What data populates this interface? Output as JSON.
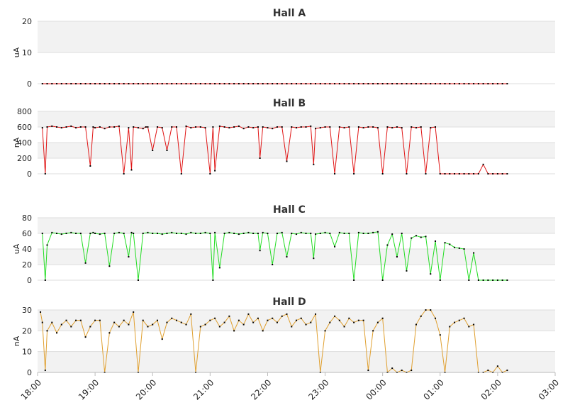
{
  "chart_data": [
    {
      "type": "line",
      "title": "Hall A",
      "ylabel": "uA",
      "ylim": [
        0,
        20
      ],
      "yticks": [
        0,
        10,
        20
      ],
      "color": "#e01515",
      "series": [
        {
          "x": [
            "18:05",
            "18:10",
            "18:15",
            "18:20",
            "18:25",
            "18:30",
            "18:35",
            "18:40",
            "18:45",
            "18:50",
            "18:55",
            "19:00",
            "19:05",
            "19:10",
            "19:15",
            "19:20",
            "19:25",
            "19:30",
            "19:35",
            "19:40",
            "19:45",
            "19:50",
            "19:55",
            "20:00",
            "20:05",
            "20:10",
            "20:15",
            "20:20",
            "20:25",
            "20:30",
            "20:35",
            "20:40",
            "20:45",
            "20:50",
            "20:55",
            "21:00",
            "21:05",
            "21:10",
            "21:15",
            "21:20",
            "21:25",
            "21:30",
            "21:35",
            "21:40",
            "21:45",
            "21:50",
            "21:55",
            "22:00",
            "22:05",
            "22:10",
            "22:15",
            "22:20",
            "22:25",
            "22:30",
            "22:35",
            "22:40",
            "22:45",
            "22:50",
            "22:55",
            "23:00",
            "23:05",
            "23:10",
            "23:15",
            "23:20",
            "23:25",
            "23:30",
            "23:35",
            "23:40",
            "23:45",
            "23:50",
            "23:55",
            "00:00",
            "00:05",
            "00:10",
            "00:15",
            "00:20",
            "00:25",
            "00:30",
            "00:35",
            "00:40",
            "00:45",
            "00:50",
            "00:55",
            "01:00",
            "01:05",
            "01:10",
            "01:15",
            "01:20",
            "01:25",
            "01:30",
            "01:35",
            "01:40",
            "01:45",
            "01:50",
            "01:55",
            "02:00",
            "02:05",
            "02:10"
          ],
          "values": [
            0,
            0,
            0,
            0,
            0,
            0,
            0,
            0,
            0,
            0,
            0,
            0,
            0,
            0,
            0,
            0,
            0,
            0,
            0,
            0,
            0,
            0,
            0,
            0,
            0,
            0,
            0,
            0,
            0,
            0,
            0,
            0,
            0,
            0,
            0,
            0,
            0,
            0,
            0,
            0,
            0,
            0,
            0,
            0,
            0,
            0,
            0,
            0,
            0,
            0,
            0,
            0,
            0,
            0,
            0,
            0,
            0,
            0,
            0,
            0,
            0,
            0,
            0,
            0,
            0,
            0,
            0,
            0,
            0,
            0,
            0,
            0,
            0,
            0,
            0,
            0,
            0,
            0,
            0,
            0,
            0,
            0,
            0,
            0,
            0,
            0,
            0,
            0,
            0,
            0,
            0,
            0,
            0,
            0,
            0,
            0,
            0,
            0
          ]
        }
      ]
    },
    {
      "type": "line",
      "title": "Hall B",
      "ylabel": "nA",
      "ylim": [
        0,
        800
      ],
      "yticks": [
        0,
        200,
        400,
        600,
        800
      ],
      "color": "#e01515",
      "series": [
        {
          "x": [
            "18:05",
            "18:08",
            "18:10",
            "18:15",
            "18:20",
            "18:25",
            "18:30",
            "18:35",
            "18:40",
            "18:45",
            "18:50",
            "18:55",
            "18:58",
            "19:00",
            "19:05",
            "19:10",
            "19:15",
            "19:20",
            "19:25",
            "19:30",
            "19:35",
            "19:38",
            "19:40",
            "19:45",
            "19:50",
            "19:53",
            "19:55",
            "20:00",
            "20:05",
            "20:10",
            "20:15",
            "20:20",
            "20:25",
            "20:30",
            "20:35",
            "20:40",
            "20:45",
            "20:50",
            "20:55",
            "21:00",
            "21:03",
            "21:05",
            "21:10",
            "21:15",
            "21:20",
            "21:25",
            "21:30",
            "21:35",
            "21:40",
            "21:45",
            "21:50",
            "21:52",
            "21:55",
            "22:00",
            "22:05",
            "22:10",
            "22:15",
            "22:20",
            "22:25",
            "22:30",
            "22:35",
            "22:40",
            "22:45",
            "22:48",
            "22:50",
            "22:55",
            "23:00",
            "23:05",
            "23:10",
            "23:15",
            "23:20",
            "23:25",
            "23:30",
            "23:35",
            "23:40",
            "23:45",
            "23:50",
            "23:55",
            "00:00",
            "00:05",
            "00:10",
            "00:15",
            "00:20",
            "00:25",
            "00:30",
            "00:35",
            "00:40",
            "00:45",
            "00:50",
            "00:55",
            "01:00",
            "01:05",
            "01:10",
            "01:15",
            "01:20",
            "01:25",
            "01:30",
            "01:35",
            "01:40",
            "01:45",
            "01:50",
            "01:55",
            "02:00",
            "02:05",
            "02:10"
          ],
          "values": [
            590,
            0,
            600,
            610,
            600,
            590,
            600,
            610,
            590,
            600,
            600,
            100,
            600,
            590,
            600,
            580,
            600,
            600,
            610,
            0,
            590,
            50,
            600,
            590,
            580,
            600,
            600,
            300,
            600,
            590,
            300,
            600,
            600,
            0,
            610,
            590,
            600,
            600,
            590,
            0,
            600,
            40,
            610,
            600,
            590,
            600,
            610,
            580,
            600,
            590,
            600,
            200,
            600,
            590,
            580,
            600,
            600,
            160,
            600,
            590,
            600,
            600,
            610,
            120,
            580,
            590,
            600,
            600,
            0,
            600,
            590,
            600,
            0,
            600,
            590,
            600,
            600,
            590,
            0,
            600,
            590,
            600,
            590,
            0,
            600,
            590,
            600,
            0,
            590,
            600,
            0,
            0,
            0,
            0,
            0,
            0,
            0,
            0,
            0,
            120,
            0,
            0,
            0,
            0,
            0
          ]
        }
      ]
    },
    {
      "type": "line",
      "title": "Hall C",
      "ylabel": "uA",
      "ylim": [
        0,
        80
      ],
      "yticks": [
        0,
        20,
        40,
        60,
        80
      ],
      "color": "#22dd22",
      "series": [
        {
          "x": [
            "18:05",
            "18:08",
            "18:10",
            "18:15",
            "18:20",
            "18:25",
            "18:30",
            "18:35",
            "18:40",
            "18:45",
            "18:50",
            "18:55",
            "18:58",
            "19:00",
            "19:05",
            "19:10",
            "19:15",
            "19:20",
            "19:25",
            "19:30",
            "19:35",
            "19:38",
            "19:40",
            "19:45",
            "19:50",
            "19:55",
            "20:00",
            "20:05",
            "20:10",
            "20:15",
            "20:20",
            "20:25",
            "20:30",
            "20:35",
            "20:40",
            "20:45",
            "20:50",
            "20:55",
            "21:00",
            "21:03",
            "21:05",
            "21:10",
            "21:15",
            "21:20",
            "21:25",
            "21:30",
            "21:35",
            "21:40",
            "21:45",
            "21:50",
            "21:52",
            "21:55",
            "22:00",
            "22:05",
            "22:10",
            "22:15",
            "22:20",
            "22:25",
            "22:30",
            "22:35",
            "22:40",
            "22:45",
            "22:48",
            "22:50",
            "22:55",
            "23:00",
            "23:05",
            "23:10",
            "23:15",
            "23:20",
            "23:25",
            "23:30",
            "23:35",
            "23:40",
            "23:45",
            "23:50",
            "23:55",
            "00:00",
            "00:05",
            "00:10",
            "00:15",
            "00:20",
            "00:25",
            "00:30",
            "00:35",
            "00:40",
            "00:45",
            "00:50",
            "00:55",
            "01:00",
            "01:05",
            "01:10",
            "01:15",
            "01:20",
            "01:25",
            "01:30",
            "01:35",
            "01:40",
            "01:45",
            "01:50",
            "01:55",
            "02:00",
            "02:05",
            "02:10"
          ],
          "values": [
            60,
            0,
            45,
            61,
            60,
            59,
            60,
            61,
            60,
            60,
            22,
            60,
            61,
            60,
            59,
            60,
            18,
            60,
            61,
            60,
            30,
            61,
            60,
            0,
            60,
            61,
            60,
            60,
            59,
            60,
            61,
            60,
            60,
            59,
            61,
            60,
            60,
            61,
            60,
            0,
            61,
            16,
            60,
            61,
            60,
            59,
            60,
            61,
            60,
            60,
            38,
            61,
            60,
            20,
            60,
            61,
            30,
            60,
            59,
            61,
            60,
            60,
            28,
            59,
            60,
            61,
            60,
            43,
            61,
            60,
            60,
            0,
            61,
            60,
            60,
            61,
            62,
            0,
            45,
            59,
            30,
            60,
            12,
            54,
            57,
            55,
            56,
            8,
            50,
            0,
            48,
            46,
            42,
            41,
            40,
            0,
            35,
            0,
            0,
            0,
            0,
            0,
            0,
            0
          ]
        }
      ]
    },
    {
      "type": "line",
      "title": "Hall D",
      "ylabel": "nA",
      "ylim": [
        0,
        30
      ],
      "yticks": [
        0,
        10,
        20,
        30
      ],
      "color": "#e0a030",
      "series": [
        {
          "x": [
            "18:03",
            "18:05",
            "18:08",
            "18:10",
            "18:15",
            "18:20",
            "18:25",
            "18:30",
            "18:35",
            "18:40",
            "18:45",
            "18:50",
            "18:55",
            "19:00",
            "19:05",
            "19:10",
            "19:15",
            "19:20",
            "19:25",
            "19:30",
            "19:35",
            "19:40",
            "19:45",
            "19:50",
            "19:55",
            "20:00",
            "20:05",
            "20:10",
            "20:15",
            "20:20",
            "20:25",
            "20:30",
            "20:35",
            "20:40",
            "20:45",
            "20:50",
            "20:55",
            "21:00",
            "21:05",
            "21:10",
            "21:15",
            "21:20",
            "21:25",
            "21:30",
            "21:35",
            "21:40",
            "21:45",
            "21:50",
            "21:55",
            "22:00",
            "22:05",
            "22:10",
            "22:15",
            "22:20",
            "22:25",
            "22:30",
            "22:35",
            "22:40",
            "22:45",
            "22:50",
            "22:55",
            "23:00",
            "23:05",
            "23:10",
            "23:15",
            "23:20",
            "23:25",
            "23:30",
            "23:35",
            "23:40",
            "23:45",
            "23:50",
            "23:55",
            "00:00",
            "00:05",
            "00:10",
            "00:15",
            "00:20",
            "00:25",
            "00:30",
            "00:35",
            "00:40",
            "00:45",
            "00:50",
            "00:55",
            "01:00",
            "01:05",
            "01:10",
            "01:15",
            "01:20",
            "01:25",
            "01:30",
            "01:35",
            "01:40",
            "01:45",
            "01:50",
            "01:55",
            "02:00",
            "02:05",
            "02:10"
          ],
          "values": [
            29,
            24,
            1,
            20,
            24,
            19,
            23,
            25,
            22,
            25,
            25,
            17,
            22,
            25,
            25,
            0,
            19,
            24,
            22,
            25,
            23,
            29,
            0,
            25,
            22,
            23,
            25,
            16,
            24,
            26,
            25,
            24,
            23,
            28,
            0,
            22,
            23,
            25,
            26,
            22,
            24,
            27,
            20,
            25,
            23,
            28,
            24,
            26,
            20,
            25,
            26,
            24,
            27,
            28,
            22,
            25,
            26,
            23,
            24,
            28,
            0,
            20,
            24,
            27,
            25,
            22,
            26,
            24,
            25,
            25,
            1,
            20,
            24,
            26,
            0,
            2,
            0,
            1,
            0,
            1,
            23,
            27,
            31,
            30,
            26,
            18,
            0,
            22,
            24,
            25,
            26,
            22,
            23,
            0,
            0,
            1,
            0,
            3,
            0,
            1
          ]
        }
      ]
    }
  ],
  "x_axis": {
    "ticks": [
      "18:00",
      "19:00",
      "20:00",
      "21:00",
      "22:00",
      "23:00",
      "00:00",
      "01:00",
      "02:00",
      "03:00"
    ]
  }
}
